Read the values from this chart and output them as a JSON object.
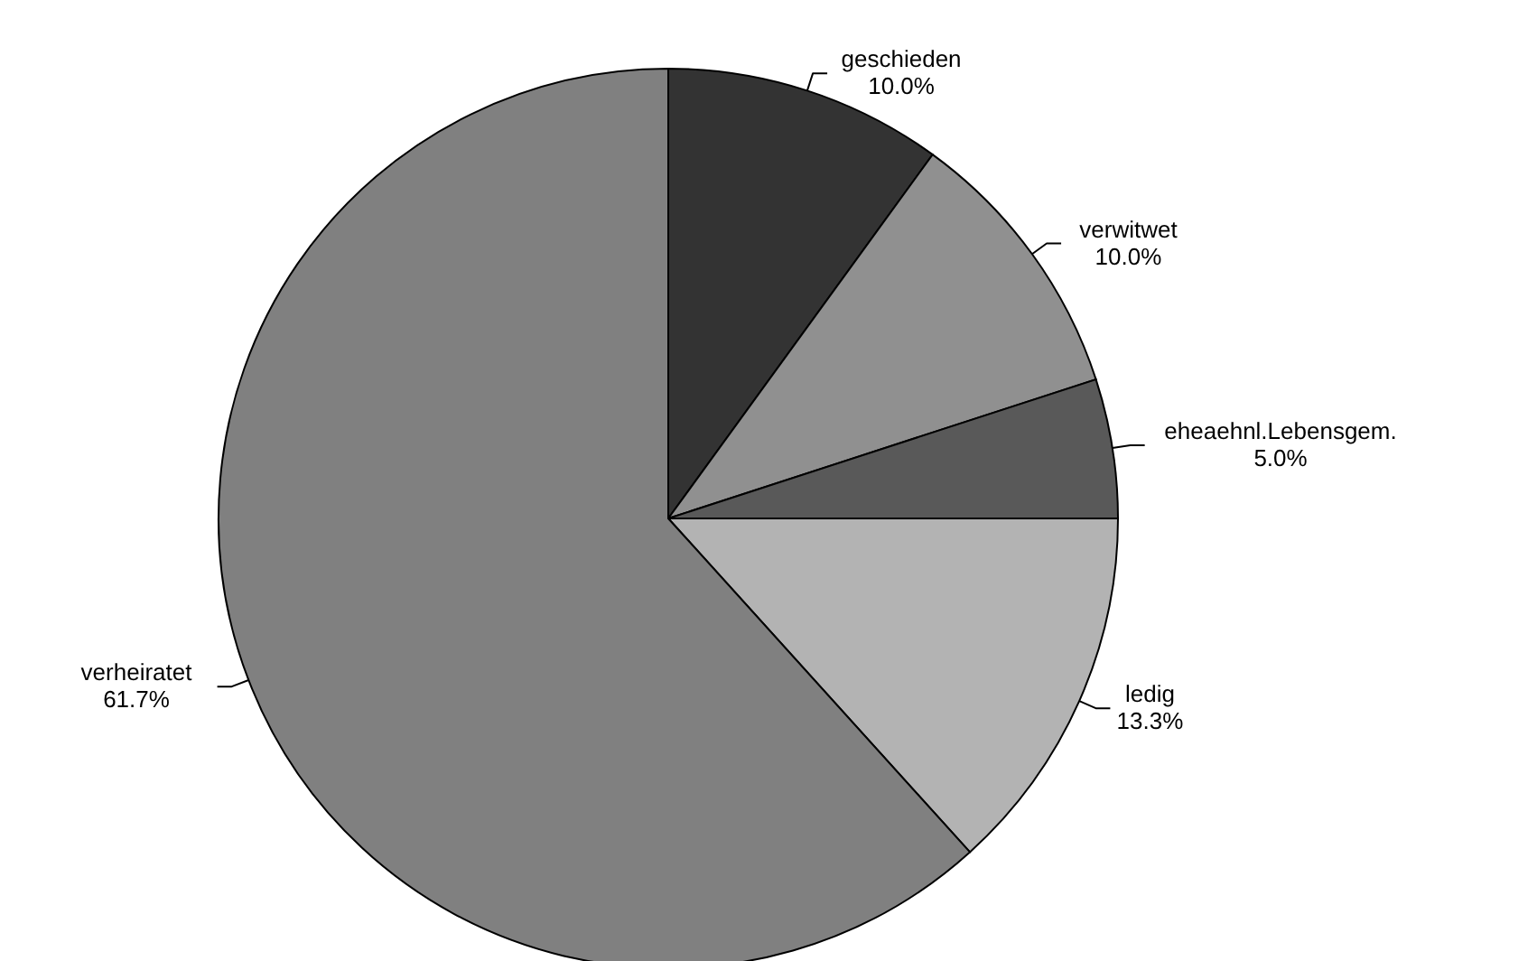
{
  "chart_data": {
    "type": "pie",
    "categories": [
      "geschieden",
      "verwitwet",
      "eheaehnl.Lebensgem.",
      "ledig",
      "verheiratet"
    ],
    "values": [
      10.0,
      10.0,
      5.0,
      13.3,
      61.7
    ],
    "value_labels": [
      "10.0%",
      "10.0%",
      "5.0%",
      "13.3%",
      "61.7%"
    ],
    "colors": [
      "#333333",
      "#909090",
      "#595959",
      "#b3b3b3",
      "#808080"
    ]
  }
}
